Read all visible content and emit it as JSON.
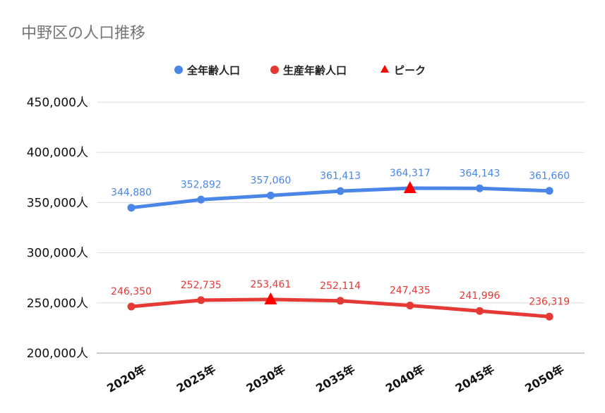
{
  "chart_data": {
    "type": "line",
    "title": "中野区の人口推移",
    "xlabel": "",
    "ylabel": "",
    "categories": [
      "2020年",
      "2025年",
      "2030年",
      "2035年",
      "2040年",
      "2045年",
      "2050年"
    ],
    "ylim": [
      200000,
      450000
    ],
    "y_ticks": [
      200000,
      250000,
      300000,
      350000,
      400000,
      450000
    ],
    "y_tick_labels": [
      "200,000人",
      "250,000人",
      "300,000人",
      "350,000人",
      "400,000人",
      "450,000人"
    ],
    "grid": true,
    "legend_position": "top-center",
    "series": [
      {
        "name": "全年齢人口",
        "color": "#4a86e8",
        "values": [
          344880,
          352892,
          357060,
          361413,
          364317,
          364143,
          361660
        ],
        "labels": [
          "344,880",
          "352,892",
          "357,060",
          "361,413",
          "364,317",
          "364,143",
          "361,660"
        ],
        "peak_index": 4
      },
      {
        "name": "生産年齢人口",
        "color": "#e53935",
        "values": [
          246350,
          252735,
          253461,
          252114,
          247435,
          241996,
          236319
        ],
        "labels": [
          "246,350",
          "252,735",
          "253,461",
          "252,114",
          "247,435",
          "241,996",
          "236,319"
        ],
        "peak_index": 2
      }
    ],
    "peak_marker": {
      "name": "ピーク",
      "color": "#ff0000"
    }
  }
}
